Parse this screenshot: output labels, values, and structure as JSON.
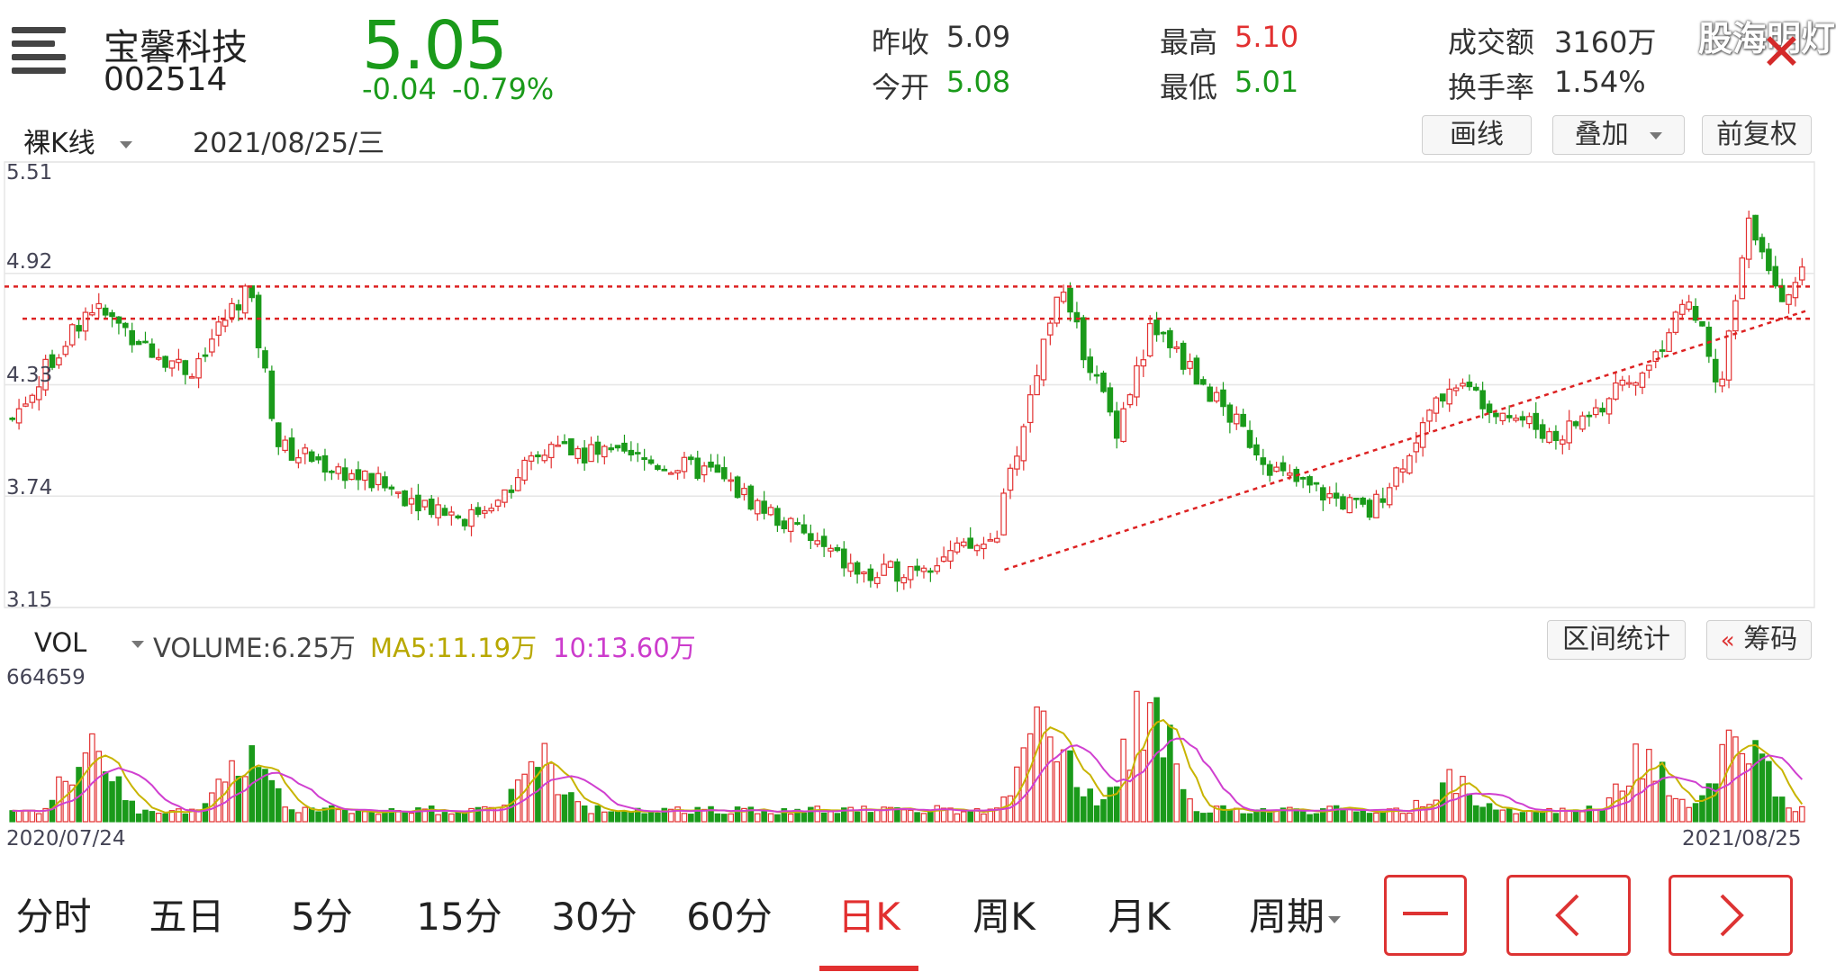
{
  "stock": {
    "name": "宝馨科技",
    "code": "002514",
    "price": "5.05",
    "change": "-0.04",
    "change_pct": "-0.79%"
  },
  "quote": {
    "prev_close_label": "昨收",
    "prev_close": "5.09",
    "open_label": "今开",
    "open": "5.08",
    "high_label": "最高",
    "high": "5.10",
    "low_label": "最低",
    "low": "5.01",
    "amount_label": "成交额",
    "amount": "3160万",
    "turnover_label": "换手率",
    "turnover": "1.54%"
  },
  "watermark": "股海明灯",
  "toolbar": {
    "kline_type": "裸K线",
    "date": "2021/08/25/三",
    "draw": "画线",
    "overlay": "叠加",
    "adjust": "前复权"
  },
  "price_axis": [
    "5.51",
    "4.92",
    "4.33",
    "3.74",
    "3.15"
  ],
  "volume_bar": {
    "indicator": "VOL",
    "volume_label": "VOLUME:",
    "volume_value": "6.25万",
    "ma5_label": "MA5:",
    "ma5_value": "11.19万",
    "ma10_label": "10:",
    "ma10_value": "13.60万",
    "interval_stats": "区间统计",
    "chips": "筹码",
    "chips_icon": "double-chevron-left-icon"
  },
  "volume_axis_max": "664659",
  "date_range": {
    "start": "2020/07/24",
    "end": "2021/08/25"
  },
  "tabs": [
    "分时",
    "五日",
    "5分",
    "15分",
    "30分",
    "60分",
    "日K",
    "周K",
    "月K",
    "周期"
  ],
  "active_tab": "日K",
  "colors": {
    "up": "#e23030",
    "down": "#1a9a1a",
    "ma5": "#c8b400",
    "ma10": "#d040d0",
    "accent": "#e23030"
  },
  "chart_data": {
    "type": "candlestick",
    "price_range": [
      3.15,
      5.51
    ],
    "resistance_levels": [
      4.85,
      4.68
    ],
    "support_trendline": [
      {
        "x": "2021/03",
        "y": 3.35
      },
      {
        "x": "2021/08/25",
        "y": 4.72
      }
    ],
    "key_closes": [
      {
        "x": "2020/07/24",
        "y": 4.15
      },
      {
        "x": "2020/08/10",
        "y": 4.75
      },
      {
        "x": "2020/09/01",
        "y": 4.4
      },
      {
        "x": "2020/09/14",
        "y": 4.85
      },
      {
        "x": "2020/09/21",
        "y": 4.0
      },
      {
        "x": "2020/11/02",
        "y": 3.62
      },
      {
        "x": "2020/11/20",
        "y": 4.0
      },
      {
        "x": "2020/12/25",
        "y": 3.87
      },
      {
        "x": "2021/01/29",
        "y": 3.3
      },
      {
        "x": "2021/02/26",
        "y": 3.5
      },
      {
        "x": "2021/03/12",
        "y": 4.85
      },
      {
        "x": "2021/03/25",
        "y": 4.1
      },
      {
        "x": "2021/04/02",
        "y": 4.65
      },
      {
        "x": "2021/04/30",
        "y": 3.85
      },
      {
        "x": "2021/05/20",
        "y": 3.65
      },
      {
        "x": "2021/06/07",
        "y": 4.35
      },
      {
        "x": "2021/06/30",
        "y": 4.05
      },
      {
        "x": "2021/07/20",
        "y": 4.4
      },
      {
        "x": "2021/07/30",
        "y": 4.82
      },
      {
        "x": "2021/08/05",
        "y": 4.25
      },
      {
        "x": "2021/08/12",
        "y": 5.2
      },
      {
        "x": "2021/08/20",
        "y": 4.78
      },
      {
        "x": "2021/08/25",
        "y": 5.05
      }
    ],
    "volume_max": 664659,
    "volume_peaks": [
      {
        "x": "2020/08/10",
        "y": 420000
      },
      {
        "x": "2020/09/14",
        "y": 400000
      },
      {
        "x": "2020/11/18",
        "y": 330000
      },
      {
        "x": "2021/03/10",
        "y": 600000
      },
      {
        "x": "2021/04/01",
        "y": 664659
      },
      {
        "x": "2021/06/07",
        "y": 250000
      },
      {
        "x": "2021/07/20",
        "y": 380000
      },
      {
        "x": "2021/08/10",
        "y": 500000
      },
      {
        "x": "2021/08/25",
        "y": 62500
      }
    ]
  }
}
